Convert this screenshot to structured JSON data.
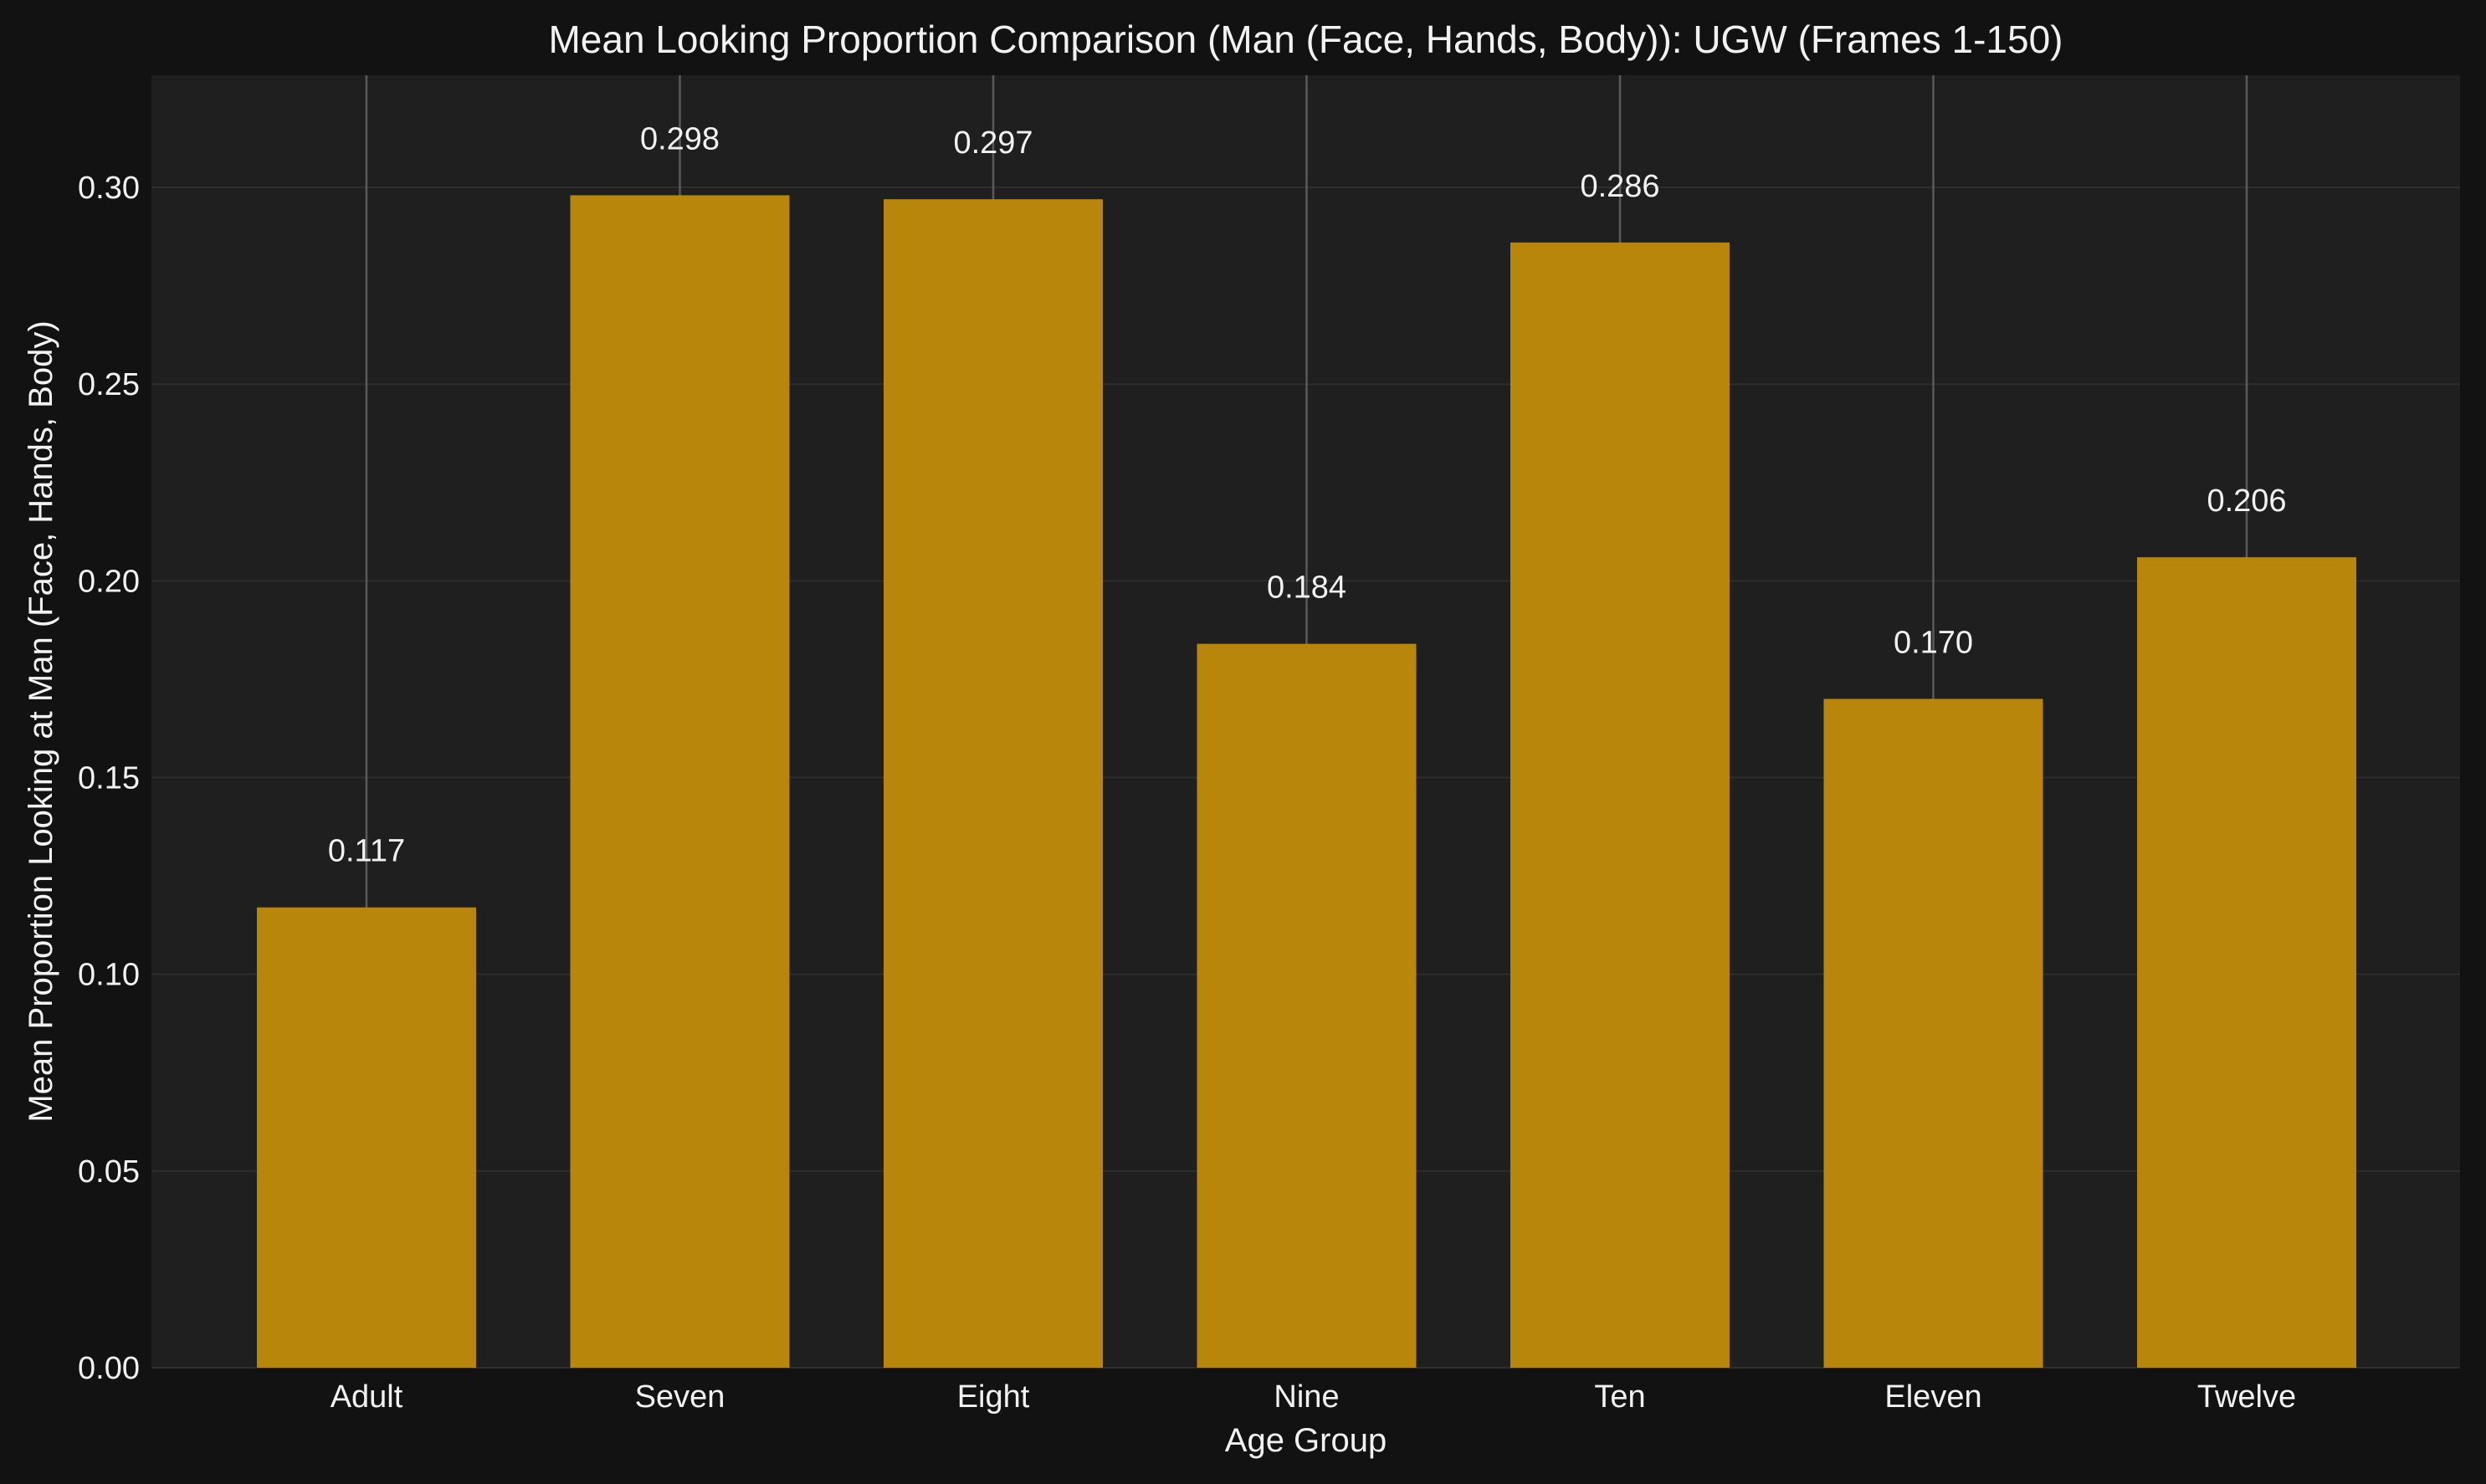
{
  "chart_data": {
    "type": "bar",
    "title": "Mean Looking Proportion Comparison (Man (Face, Hands, Body)): UGW (Frames 1-150)",
    "xlabel": "Age Group",
    "ylabel": "Mean Proportion Looking at Man (Face, Hands, Body)",
    "categories": [
      "Adult",
      "Seven",
      "Eight",
      "Nine",
      "Ten",
      "Eleven",
      "Twelve"
    ],
    "values": [
      0.117,
      0.298,
      0.297,
      0.184,
      0.286,
      0.17,
      0.206
    ],
    "value_labels": [
      "0.117",
      "0.298",
      "0.297",
      "0.184",
      "0.286",
      "0.170",
      "0.206"
    ],
    "ylim": [
      0,
      0.3285
    ],
    "yticks": [
      0.0,
      0.05,
      0.1,
      0.15,
      0.2,
      0.25,
      0.3
    ],
    "ytick_labels": [
      "0.00",
      "0.05",
      "0.10",
      "0.15",
      "0.20",
      "0.25",
      "0.30"
    ],
    "grid": true,
    "colors": {
      "figure_bg": "#121212",
      "plot_bg": "#1f1f1f",
      "bar": "#b8860b",
      "grid": "#2e2e2e",
      "error_line": "#5a5a5a",
      "text": "#f2f2f2"
    }
  }
}
